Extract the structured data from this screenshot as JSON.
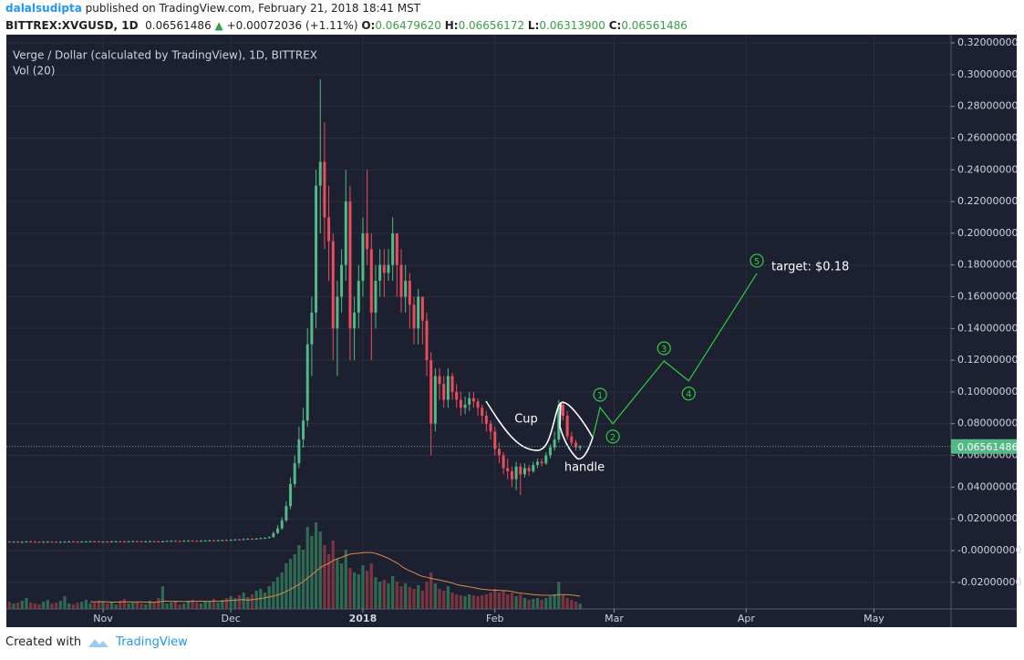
{
  "header": {
    "author": "dalalsudipta",
    "published": "published on TradingView.com, February 21, 2018 18:41 MST"
  },
  "quote": {
    "symbol": "BITTREX:XVGUSD, 1D",
    "last": "0.06561486",
    "change": "+0.00072036 (+1.11%)",
    "fields": [
      {
        "label": "O:",
        "value": "0.06479620"
      },
      {
        "label": "H:",
        "value": "0.06656172"
      },
      {
        "label": "L:",
        "value": "0.06313900"
      },
      {
        "label": "C:",
        "value": "0.06561486"
      }
    ]
  },
  "chart_data": {
    "type": "candlestick",
    "title": "Verge / Dollar (calculated by TradingView), 1D, BITTREX",
    "volume_label": "Vol (20)",
    "up_color": "#53b987",
    "down_color": "#eb4d5c",
    "volume_up_color": "#2f6b52",
    "volume_down_color": "#7a3540",
    "volume_ma_color": "#d98a4a",
    "grid": true,
    "xlim": [
      -0.7,
      221.1
    ],
    "xticks": [
      {
        "value": 22,
        "label": "Nov"
      },
      {
        "value": 52,
        "label": "Dec"
      },
      {
        "value": 83,
        "label": "2018"
      },
      {
        "value": 114,
        "label": "Feb"
      },
      {
        "value": 142,
        "label": "Mar"
      },
      {
        "value": 173,
        "label": "Apr"
      },
      {
        "value": 203,
        "label": "May"
      }
    ],
    "ylim": [
      -0.0368,
      0.3252
    ],
    "yticks": [
      {
        "value": 0.32,
        "label": "0.32000000"
      },
      {
        "value": 0.3,
        "label": "0.30000000"
      },
      {
        "value": 0.28,
        "label": "0.28000000"
      },
      {
        "value": 0.26,
        "label": "0.26000000"
      },
      {
        "value": 0.24,
        "label": "0.24000000"
      },
      {
        "value": 0.22,
        "label": "0.22000000"
      },
      {
        "value": 0.2,
        "label": "0.20000000"
      },
      {
        "value": 0.18,
        "label": "0.18000000"
      },
      {
        "value": 0.16,
        "label": "0.16000000"
      },
      {
        "value": 0.14,
        "label": "0.14000000"
      },
      {
        "value": 0.12,
        "label": "0.12000000"
      },
      {
        "value": 0.1,
        "label": "0.10000000"
      },
      {
        "value": 0.08,
        "label": "0.08000000"
      },
      {
        "value": 0.06,
        "label": "0.06000000"
      },
      {
        "value": 0.04,
        "label": "0.04000000"
      },
      {
        "value": 0.02,
        "label": "0.02000000"
      },
      {
        "value": 0,
        "label": "-0.00000000"
      },
      {
        "value": -0.02,
        "label": "-0.02000000"
      }
    ],
    "last_price": 0.06561486,
    "candles": [
      [
        0.0056,
        0.006,
        0.0051,
        0.0055
      ],
      [
        0.0055,
        0.006,
        0.0051,
        0.0056
      ],
      [
        0.0056,
        0.006,
        0.005,
        0.0054
      ],
      [
        0.0054,
        0.0059,
        0.005,
        0.0055
      ],
      [
        0.0055,
        0.0061,
        0.0051,
        0.0057
      ],
      [
        0.0057,
        0.0061,
        0.0052,
        0.0056
      ],
      [
        0.0056,
        0.006,
        0.0051,
        0.0055
      ],
      [
        0.0055,
        0.0059,
        0.005,
        0.0054
      ],
      [
        0.0054,
        0.0059,
        0.005,
        0.0055
      ],
      [
        0.0055,
        0.006,
        0.0051,
        0.0056
      ],
      [
        0.0056,
        0.006,
        0.0051,
        0.0055
      ],
      [
        0.0055,
        0.0059,
        0.005,
        0.0054
      ],
      [
        0.0054,
        0.0059,
        0.005,
        0.0055
      ],
      [
        0.0055,
        0.006,
        0.0051,
        0.0056
      ],
      [
        0.0056,
        0.0061,
        0.0052,
        0.0057
      ],
      [
        0.0057,
        0.0061,
        0.0052,
        0.0056
      ],
      [
        0.0056,
        0.006,
        0.0051,
        0.0055
      ],
      [
        0.0055,
        0.006,
        0.0051,
        0.0056
      ],
      [
        0.0056,
        0.0061,
        0.0052,
        0.0057
      ],
      [
        0.0057,
        0.0062,
        0.0053,
        0.0058
      ],
      [
        0.0058,
        0.0062,
        0.0053,
        0.0057
      ],
      [
        0.0057,
        0.0061,
        0.0052,
        0.0056
      ],
      [
        0.0056,
        0.006,
        0.0052,
        0.0056
      ],
      [
        0.0056,
        0.006,
        0.0051,
        0.0055
      ],
      [
        0.0055,
        0.0061,
        0.0051,
        0.0057
      ],
      [
        0.0057,
        0.0062,
        0.0053,
        0.0058
      ],
      [
        0.0058,
        0.0062,
        0.0053,
        0.0057
      ],
      [
        0.0057,
        0.0061,
        0.0052,
        0.0056
      ],
      [
        0.0056,
        0.0062,
        0.0052,
        0.0058
      ],
      [
        0.0058,
        0.0063,
        0.0054,
        0.0059
      ],
      [
        0.0059,
        0.0063,
        0.0054,
        0.0058
      ],
      [
        0.0058,
        0.0062,
        0.0053,
        0.0057
      ],
      [
        0.0057,
        0.0062,
        0.0053,
        0.0058
      ],
      [
        0.0058,
        0.0063,
        0.0054,
        0.0059
      ],
      [
        0.0059,
        0.0063,
        0.0054,
        0.0058
      ],
      [
        0.0058,
        0.0062,
        0.0053,
        0.0057
      ],
      [
        0.0057,
        0.0062,
        0.0053,
        0.0058
      ],
      [
        0.0058,
        0.0064,
        0.0054,
        0.006
      ],
      [
        0.006,
        0.0065,
        0.0056,
        0.0061
      ],
      [
        0.0061,
        0.0065,
        0.0056,
        0.006
      ],
      [
        0.006,
        0.0064,
        0.0055,
        0.0059
      ],
      [
        0.0059,
        0.0065,
        0.0055,
        0.0061
      ],
      [
        0.0061,
        0.0066,
        0.0057,
        0.0062
      ],
      [
        0.0062,
        0.0066,
        0.0057,
        0.0061
      ],
      [
        0.0061,
        0.0065,
        0.0056,
        0.006
      ],
      [
        0.006,
        0.0066,
        0.0056,
        0.0062
      ],
      [
        0.0062,
        0.0067,
        0.0058,
        0.0063
      ],
      [
        0.0063,
        0.0068,
        0.0059,
        0.0064
      ],
      [
        0.0064,
        0.0068,
        0.0059,
        0.0063
      ],
      [
        0.0063,
        0.0069,
        0.0059,
        0.0065
      ],
      [
        0.0065,
        0.007,
        0.0061,
        0.0066
      ],
      [
        0.0066,
        0.007,
        0.0061,
        0.0065
      ],
      [
        0.0065,
        0.0072,
        0.0061,
        0.0068
      ],
      [
        0.0068,
        0.0074,
        0.0064,
        0.007
      ],
      [
        0.007,
        0.0074,
        0.0065,
        0.0069
      ],
      [
        0.0069,
        0.0076,
        0.0065,
        0.0072
      ],
      [
        0.0072,
        0.0078,
        0.0068,
        0.0074
      ],
      [
        0.0074,
        0.0078,
        0.0069,
        0.0073
      ],
      [
        0.0073,
        0.008,
        0.0069,
        0.0076
      ],
      [
        0.0076,
        0.0082,
        0.0072,
        0.0078
      ],
      [
        0.0078,
        0.0084,
        0.0074,
        0.008
      ],
      [
        0.008,
        0.009,
        0.0076,
        0.0085
      ],
      [
        0.0085,
        0.012,
        0.008,
        0.011
      ],
      [
        0.011,
        0.016,
        0.0105,
        0.014
      ],
      [
        0.014,
        0.021,
        0.013,
        0.019
      ],
      [
        0.019,
        0.031,
        0.018,
        0.028
      ],
      [
        0.028,
        0.046,
        0.026,
        0.042
      ],
      [
        0.042,
        0.06,
        0.04,
        0.055
      ],
      [
        0.055,
        0.078,
        0.052,
        0.07
      ],
      [
        0.07,
        0.09,
        0.065,
        0.082
      ],
      [
        0.082,
        0.14,
        0.078,
        0.13
      ],
      [
        0.13,
        0.16,
        0.11,
        0.15
      ],
      [
        0.15,
        0.24,
        0.14,
        0.23
      ],
      [
        0.23,
        0.297,
        0.2,
        0.245
      ],
      [
        0.245,
        0.27,
        0.19,
        0.21
      ],
      [
        0.21,
        0.23,
        0.17,
        0.195
      ],
      [
        0.195,
        0.2,
        0.12,
        0.14
      ],
      [
        0.14,
        0.17,
        0.11,
        0.16
      ],
      [
        0.16,
        0.19,
        0.15,
        0.18
      ],
      [
        0.18,
        0.24,
        0.17,
        0.22
      ],
      [
        0.22,
        0.23,
        0.12,
        0.14
      ],
      [
        0.14,
        0.16,
        0.12,
        0.15
      ],
      [
        0.15,
        0.18,
        0.14,
        0.17
      ],
      [
        0.17,
        0.21,
        0.16,
        0.2
      ],
      [
        0.2,
        0.24,
        0.18,
        0.19
      ],
      [
        0.19,
        0.2,
        0.12,
        0.15
      ],
      [
        0.15,
        0.18,
        0.14,
        0.17
      ],
      [
        0.17,
        0.19,
        0.16,
        0.18
      ],
      [
        0.18,
        0.19,
        0.16,
        0.175
      ],
      [
        0.175,
        0.19,
        0.17,
        0.18
      ],
      [
        0.18,
        0.21,
        0.17,
        0.2
      ],
      [
        0.2,
        0.2,
        0.16,
        0.18
      ],
      [
        0.18,
        0.19,
        0.15,
        0.16
      ],
      [
        0.16,
        0.18,
        0.15,
        0.17
      ],
      [
        0.17,
        0.175,
        0.14,
        0.155
      ],
      [
        0.155,
        0.16,
        0.13,
        0.14
      ],
      [
        0.14,
        0.165,
        0.13,
        0.16
      ],
      [
        0.16,
        0.16,
        0.13,
        0.145
      ],
      [
        0.145,
        0.15,
        0.11,
        0.12
      ],
      [
        0.12,
        0.125,
        0.06,
        0.08
      ],
      [
        0.08,
        0.115,
        0.075,
        0.11
      ],
      [
        0.11,
        0.115,
        0.095,
        0.105
      ],
      [
        0.105,
        0.11,
        0.09,
        0.095
      ],
      [
        0.095,
        0.115,
        0.09,
        0.11
      ],
      [
        0.11,
        0.112,
        0.095,
        0.1
      ],
      [
        0.1,
        0.105,
        0.09,
        0.095
      ],
      [
        0.095,
        0.1,
        0.085,
        0.09
      ],
      [
        0.09,
        0.097,
        0.086,
        0.092
      ],
      [
        0.092,
        0.1,
        0.088,
        0.096
      ],
      [
        0.096,
        0.1,
        0.09,
        0.094
      ],
      [
        0.094,
        0.096,
        0.085,
        0.09
      ],
      [
        0.09,
        0.092,
        0.08,
        0.085
      ],
      [
        0.085,
        0.088,
        0.075,
        0.08
      ],
      [
        0.08,
        0.082,
        0.07,
        0.075
      ],
      [
        0.075,
        0.078,
        0.06,
        0.064
      ],
      [
        0.064,
        0.068,
        0.055,
        0.06
      ],
      [
        0.06,
        0.062,
        0.048,
        0.052
      ],
      [
        0.052,
        0.058,
        0.045,
        0.05
      ],
      [
        0.05,
        0.053,
        0.04,
        0.045
      ],
      [
        0.045,
        0.056,
        0.038,
        0.053
      ],
      [
        0.053,
        0.055,
        0.035,
        0.048
      ],
      [
        0.048,
        0.055,
        0.046,
        0.052
      ],
      [
        0.052,
        0.054,
        0.047,
        0.05
      ],
      [
        0.05,
        0.056,
        0.049,
        0.054
      ],
      [
        0.054,
        0.058,
        0.052,
        0.056
      ],
      [
        0.056,
        0.058,
        0.053,
        0.055
      ],
      [
        0.055,
        0.062,
        0.054,
        0.06
      ],
      [
        0.06,
        0.067,
        0.058,
        0.065
      ],
      [
        0.065,
        0.075,
        0.063,
        0.07
      ],
      [
        0.07,
        0.095,
        0.068,
        0.092
      ],
      [
        0.092,
        0.094,
        0.082,
        0.085
      ],
      [
        0.085,
        0.088,
        0.07,
        0.072
      ],
      [
        0.072,
        0.075,
        0.066,
        0.068
      ],
      [
        0.068,
        0.07,
        0.063,
        0.065
      ],
      [
        0.0648,
        0.0666,
        0.0631,
        0.0656
      ]
    ],
    "volume": [
      8,
      6,
      7,
      9,
      12,
      7,
      6,
      5,
      8,
      10,
      6,
      7,
      9,
      14,
      6,
      5,
      7,
      8,
      10,
      6,
      7,
      9,
      8,
      6,
      7,
      5,
      9,
      11,
      6,
      7,
      8,
      6,
      5,
      9,
      7,
      12,
      25,
      6,
      7,
      8,
      5,
      6,
      9,
      10,
      7,
      6,
      8,
      9,
      11,
      7,
      10,
      12,
      14,
      12,
      15,
      18,
      13,
      16,
      20,
      22,
      18,
      25,
      30,
      35,
      40,
      50,
      55,
      60,
      70,
      65,
      90,
      80,
      95,
      85,
      70,
      60,
      75,
      55,
      50,
      65,
      45,
      40,
      38,
      48,
      42,
      50,
      35,
      30,
      32,
      28,
      36,
      30,
      25,
      28,
      24,
      22,
      26,
      20,
      30,
      40,
      28,
      22,
      20,
      25,
      18,
      16,
      15,
      14,
      16,
      15,
      14,
      15,
      16,
      18,
      22,
      18,
      20,
      16,
      18,
      14,
      16,
      12,
      10,
      11,
      12,
      10,
      12,
      14,
      16,
      30,
      15,
      12,
      10,
      8,
      6
    ],
    "projection": {
      "color": "#2ecc40",
      "labels": [
        null,
        "1",
        "2",
        "3",
        "4",
        "5"
      ],
      "x": [
        137,
        138.7,
        141.7,
        153.7,
        159.5,
        175.5
      ],
      "y": [
        0.0713,
        0.0902,
        0.0799,
        0.1195,
        0.107,
        0.1747
      ]
    },
    "annotations": {
      "cup": "Cup",
      "handle": "handle",
      "target": "target: $0.18"
    }
  },
  "footer": {
    "created": "Created with",
    "brand": "TradingView"
  }
}
